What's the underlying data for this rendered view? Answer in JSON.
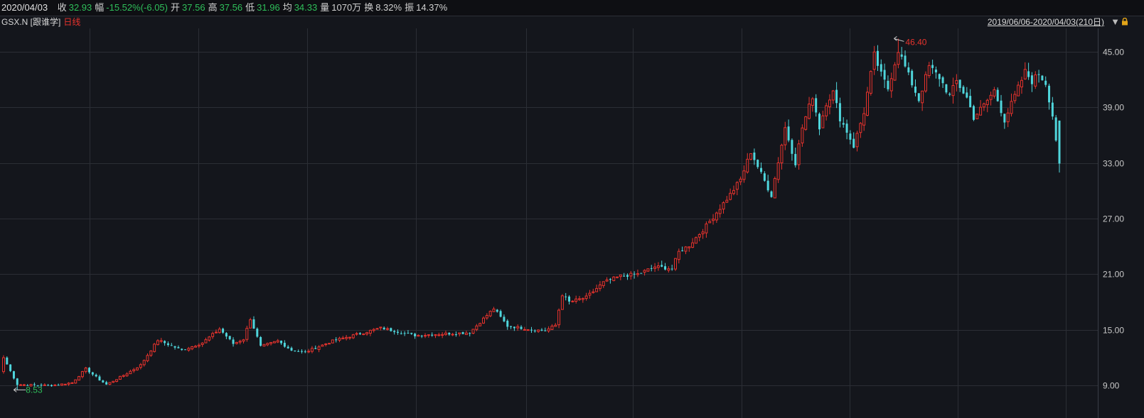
{
  "header": {
    "date": "2020/04/03",
    "fields": [
      {
        "label": "收",
        "value": "32.93",
        "tone": "down"
      },
      {
        "label": "幅",
        "value": "-15.52%(-6.05)",
        "tone": "down"
      },
      {
        "label": "开",
        "value": "37.56",
        "tone": "down"
      },
      {
        "label": "高",
        "value": "37.56",
        "tone": "down"
      },
      {
        "label": "低",
        "value": "31.96",
        "tone": "down"
      },
      {
        "label": "均",
        "value": "34.33",
        "tone": "down"
      },
      {
        "label": "量",
        "value": "1070万",
        "tone": "plain"
      },
      {
        "label": "换",
        "value": "8.32%",
        "tone": "plain"
      },
      {
        "label": "振",
        "value": "14.37%",
        "tone": "plain"
      }
    ]
  },
  "subheader": {
    "symbol": "GSX.N [跟谁学]",
    "period": "日线",
    "range": "2019/06/06-2020/04/03(210日)"
  },
  "colors": {
    "up": "#e8332d",
    "down": "#4fd6dc",
    "low_label": "#2fbf5a",
    "high_label": "#e8332d",
    "grid": "#2b2e35",
    "background": "#14161c"
  },
  "chart_data": {
    "type": "candlestick",
    "x_range": [
      "2019/06/06",
      "2020/04/03"
    ],
    "count": 210,
    "ylim": [
      5.5,
      47.5
    ],
    "yticks": [
      "45.00",
      "39.00",
      "33.00",
      "27.00",
      "21.00",
      "15.00",
      "9.00"
    ],
    "annotations": {
      "high": {
        "value": 46.4,
        "label": "46.40"
      },
      "low": {
        "value": 8.53,
        "label": "8.53"
      }
    },
    "anchors": [
      [
        0,
        12.0
      ],
      [
        4,
        9.1
      ],
      [
        14,
        9.0
      ],
      [
        20,
        9.3
      ],
      [
        24,
        10.8
      ],
      [
        28,
        9.6
      ],
      [
        30,
        9.1
      ],
      [
        36,
        10.3
      ],
      [
        40,
        11.2
      ],
      [
        45,
        13.9
      ],
      [
        52,
        12.8
      ],
      [
        58,
        13.6
      ],
      [
        63,
        15.1
      ],
      [
        67,
        13.5
      ],
      [
        70,
        14.0
      ],
      [
        72,
        16.2
      ],
      [
        75,
        13.2
      ],
      [
        80,
        13.8
      ],
      [
        84,
        12.8
      ],
      [
        88,
        12.6
      ],
      [
        96,
        13.8
      ],
      [
        110,
        15.2
      ],
      [
        120,
        14.4
      ],
      [
        130,
        14.6
      ],
      [
        136,
        14.7
      ],
      [
        140,
        16.2
      ],
      [
        143,
        17.3
      ],
      [
        147,
        15.4
      ],
      [
        155,
        15.0
      ],
      [
        158,
        14.9
      ],
      [
        161,
        15.5
      ],
      [
        163,
        18.8
      ],
      [
        165,
        18.0
      ],
      [
        170,
        18.5
      ],
      [
        175,
        20.1
      ],
      [
        180,
        20.8
      ],
      [
        185,
        21.0
      ],
      [
        190,
        21.8
      ],
      [
        195,
        21.6
      ],
      [
        197,
        23.4
      ],
      [
        200,
        24.1
      ],
      [
        205,
        26.2
      ],
      [
        212,
        29.6
      ],
      [
        215,
        31.2
      ],
      [
        218,
        34.2
      ],
      [
        221,
        31.8
      ],
      [
        224,
        29.5
      ],
      [
        228,
        36.8
      ],
      [
        231,
        33.0
      ],
      [
        233,
        36.8
      ],
      [
        236,
        40.2
      ],
      [
        238,
        36.8
      ],
      [
        240,
        39.5
      ],
      [
        242,
        40.6
      ],
      [
        244,
        37.8
      ],
      [
        246,
        36.4
      ],
      [
        248,
        34.8
      ],
      [
        251,
        38.5
      ],
      [
        254,
        44.6
      ],
      [
        256,
        42.5
      ],
      [
        258,
        41.0
      ],
      [
        261,
        45.2
      ],
      [
        264,
        42.4
      ],
      [
        267,
        39.8
      ],
      [
        270,
        43.4
      ],
      [
        273,
        42.2
      ],
      [
        276,
        40.2
      ],
      [
        278,
        41.8
      ],
      [
        281,
        40.0
      ],
      [
        283,
        37.9
      ],
      [
        286,
        39.2
      ],
      [
        289,
        40.8
      ],
      [
        292,
        37.6
      ],
      [
        295,
        40.2
      ],
      [
        298,
        42.8
      ],
      [
        300,
        41.8
      ],
      [
        302,
        42.6
      ],
      [
        304,
        41.6
      ],
      [
        306,
        38.1
      ],
      [
        308,
        32.93
      ]
    ]
  }
}
